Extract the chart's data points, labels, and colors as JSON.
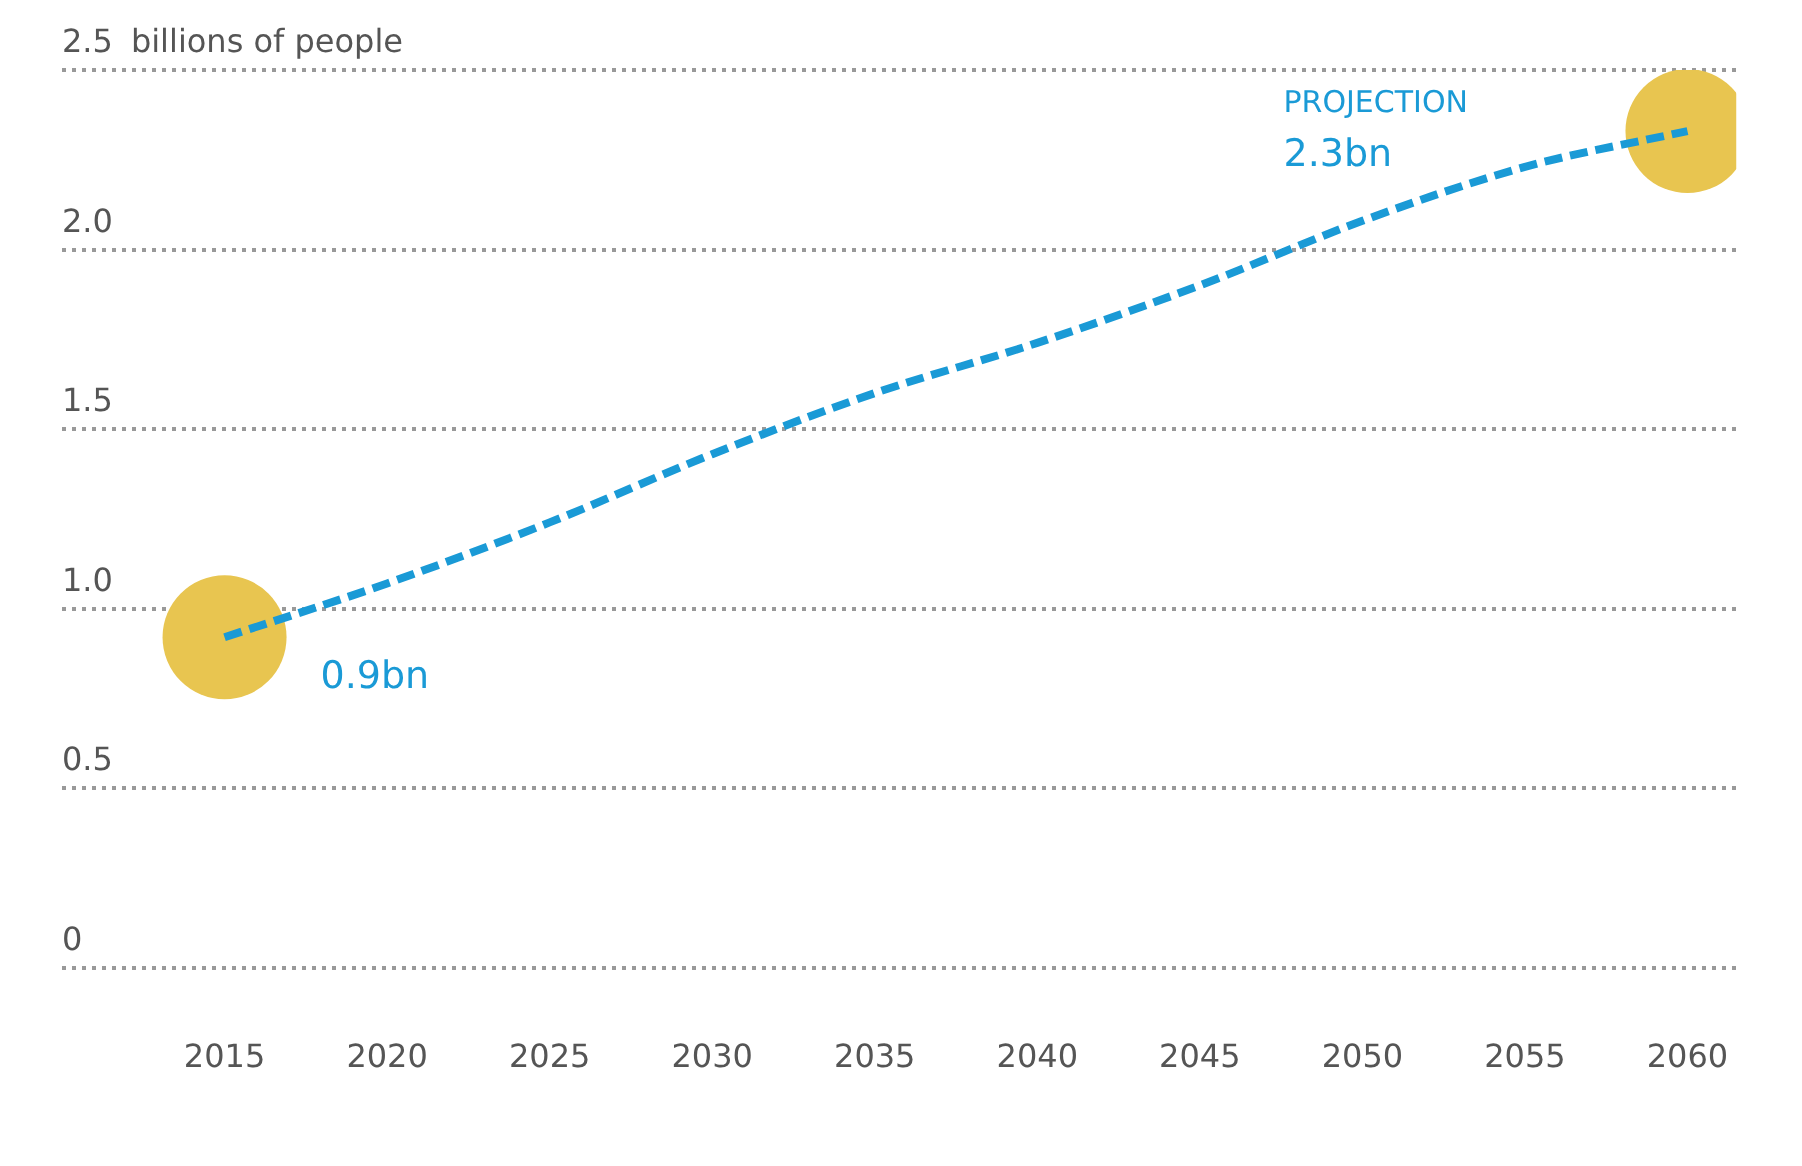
{
  "chart_data": {
    "type": "line",
    "ylabel": "billions of people",
    "x": [
      2015,
      2020,
      2025,
      2030,
      2035,
      2040,
      2045,
      2050,
      2055,
      2060
    ],
    "series": [
      {
        "color": "#1a9ad6",
        "line_style": "dashed",
        "marker": "none",
        "values": [
          0.92,
          1.07,
          1.24,
          1.43,
          1.6,
          1.74,
          1.9,
          2.08,
          2.23,
          2.33
        ]
      },
      {
        "type": "scatter",
        "color": "#e8c550",
        "marker": "circle",
        "x": [
          2015,
          2060
        ],
        "values": [
          0.92,
          2.33
        ]
      }
    ],
    "xlim": [
      2010,
      2061.5
    ],
    "xticks": [
      2015,
      2020,
      2025,
      2030,
      2035,
      2040,
      2045,
      2050,
      2055,
      2060
    ],
    "ylim": [
      0,
      2.5
    ],
    "yticks": [
      {
        "value": 0,
        "label": "0"
      },
      {
        "value": 0.5,
        "label": "0.5"
      },
      {
        "value": 1,
        "label": "1.0"
      },
      {
        "value": 1.5,
        "label": "1.5"
      },
      {
        "value": 2,
        "label": "2.0"
      },
      {
        "value": 2.5,
        "label": "2.5"
      }
    ],
    "grid": "y",
    "legend": false,
    "annotations": [
      "0.9bn",
      "PROJECTION",
      "2.3bn"
    ]
  }
}
